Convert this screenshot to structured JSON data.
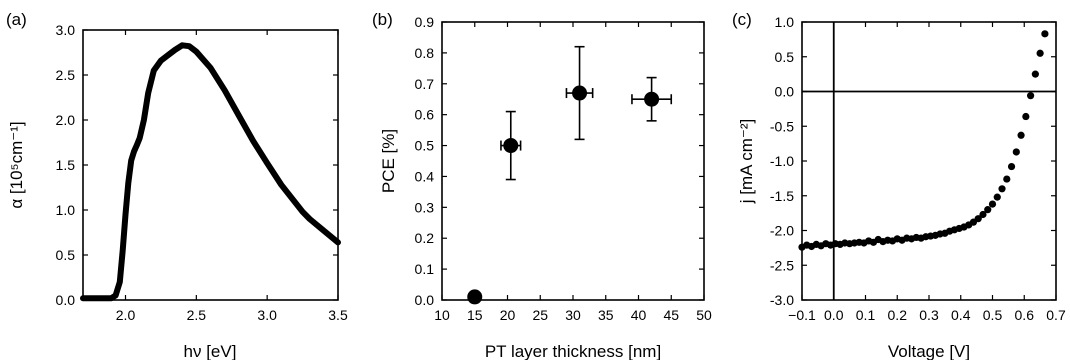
{
  "chart_data": [
    {
      "panel_label": "(a)",
      "type": "line",
      "xlabel": "hν [eV]",
      "ylabel": "α [10⁵cm⁻¹]",
      "xlim": [
        1.7,
        3.5
      ],
      "ylim": [
        0.0,
        3.0
      ],
      "xticks": [
        2.0,
        2.5,
        3.0,
        3.5
      ],
      "yticks": [
        0.0,
        0.5,
        1.0,
        1.5,
        2.0,
        2.5,
        3.0
      ],
      "x": [
        1.7,
        1.8,
        1.9,
        1.93,
        1.96,
        1.98,
        2.0,
        2.02,
        2.04,
        2.06,
        2.08,
        2.1,
        2.13,
        2.16,
        2.2,
        2.25,
        2.3,
        2.35,
        2.4,
        2.45,
        2.5,
        2.6,
        2.7,
        2.8,
        2.9,
        3.0,
        3.1,
        3.2,
        3.25,
        3.3,
        3.4,
        3.5
      ],
      "y": [
        0.02,
        0.02,
        0.02,
        0.05,
        0.2,
        0.55,
        0.95,
        1.3,
        1.55,
        1.65,
        1.72,
        1.8,
        2.0,
        2.3,
        2.55,
        2.66,
        2.72,
        2.78,
        2.83,
        2.82,
        2.76,
        2.58,
        2.33,
        2.05,
        1.77,
        1.52,
        1.28,
        1.08,
        0.98,
        0.9,
        0.77,
        0.64
      ]
    },
    {
      "panel_label": "(b)",
      "type": "scatter",
      "xlabel": "PT layer thickness [nm]",
      "ylabel": "PCE [%]",
      "xlim": [
        10,
        50
      ],
      "ylim": [
        0.0,
        0.9
      ],
      "xticks": [
        10,
        15,
        20,
        25,
        30,
        35,
        40,
        45,
        50
      ],
      "yticks": [
        0.0,
        0.1,
        0.2,
        0.3,
        0.4,
        0.5,
        0.6,
        0.7,
        0.8,
        0.9
      ],
      "points": [
        {
          "x": 15.0,
          "y": 0.01,
          "xerr": 0.0,
          "yerr": 0.0
        },
        {
          "x": 20.5,
          "y": 0.5,
          "xerr": 1.5,
          "yerr": 0.11
        },
        {
          "x": 31.0,
          "y": 0.67,
          "xerr": 2.0,
          "yerr": 0.15
        },
        {
          "x": 42.0,
          "y": 0.65,
          "xerr": 3.0,
          "yerr": 0.07
        }
      ]
    },
    {
      "panel_label": "(c)",
      "type": "scatter",
      "xlabel": "Voltage [V]",
      "ylabel": "j [mA cm⁻²]",
      "xlim": [
        -0.1,
        0.7
      ],
      "ylim": [
        -3.0,
        1.0
      ],
      "xticks": [
        -0.1,
        0.0,
        0.1,
        0.2,
        0.3,
        0.4,
        0.5,
        0.6,
        0.7
      ],
      "xtick_labels": [
        "−0.1",
        "0.0",
        "0.1",
        "0.2",
        "0.3",
        "0.4",
        "0.5",
        "0.6",
        "0.7"
      ],
      "yticks": [
        -3.0,
        -2.5,
        -2.0,
        -1.5,
        -1.0,
        -0.5,
        0.0,
        0.5,
        1.0
      ],
      "ytick_labels": [
        "-3.0",
        "-2.5",
        "-2.0",
        "-1.5",
        "-1.0",
        "-0.5",
        "0.0",
        "0.5",
        "1.0"
      ],
      "reference_lines": {
        "x": 0.0,
        "y": 0.0
      },
      "x": [
        -0.1,
        -0.085,
        -0.07,
        -0.055,
        -0.04,
        -0.025,
        -0.01,
        0.005,
        0.02,
        0.035,
        0.05,
        0.065,
        0.08,
        0.095,
        0.11,
        0.125,
        0.14,
        0.155,
        0.17,
        0.185,
        0.2,
        0.215,
        0.23,
        0.245,
        0.26,
        0.275,
        0.29,
        0.305,
        0.32,
        0.335,
        0.35,
        0.365,
        0.38,
        0.395,
        0.41,
        0.425,
        0.44,
        0.455,
        0.47,
        0.485,
        0.5,
        0.515,
        0.53,
        0.545,
        0.56,
        0.575,
        0.59,
        0.605,
        0.62,
        0.635,
        0.65,
        0.665
      ],
      "y": [
        -2.24,
        -2.21,
        -2.23,
        -2.2,
        -2.22,
        -2.19,
        -2.21,
        -2.19,
        -2.2,
        -2.18,
        -2.19,
        -2.18,
        -2.17,
        -2.18,
        -2.15,
        -2.17,
        -2.13,
        -2.16,
        -2.14,
        -2.15,
        -2.12,
        -2.14,
        -2.11,
        -2.12,
        -2.1,
        -2.11,
        -2.09,
        -2.08,
        -2.07,
        -2.05,
        -2.04,
        -2.01,
        -1.99,
        -1.97,
        -1.95,
        -1.92,
        -1.88,
        -1.83,
        -1.77,
        -1.7,
        -1.62,
        -1.52,
        -1.4,
        -1.26,
        -1.08,
        -0.87,
        -0.63,
        -0.36,
        -0.06,
        0.25,
        0.55,
        0.83
      ]
    }
  ]
}
